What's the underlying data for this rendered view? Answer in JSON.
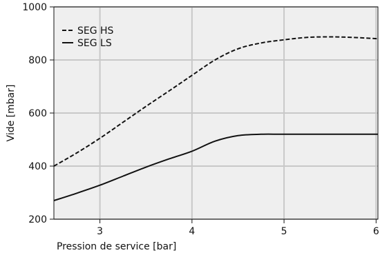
{
  "chart_data": {
    "type": "line",
    "xlabel": "Pression de service [bar]",
    "ylabel": "Vide [mbar]",
    "xlim": [
      2.5,
      6.02
    ],
    "ylim": [
      200,
      1000
    ],
    "xticks": [
      3,
      4,
      5,
      6
    ],
    "yticks": [
      200,
      400,
      600,
      800,
      1000
    ],
    "grid": true,
    "legend_position": "top-left",
    "background": "#efefef",
    "grid_color": "#c8c8c8",
    "series": [
      {
        "name": "SEG HS",
        "style": "dashed",
        "color": "#111111",
        "x": [
          2.5,
          2.75,
          3.0,
          3.25,
          3.5,
          3.75,
          4.0,
          4.25,
          4.5,
          4.75,
          5.0,
          5.25,
          5.5,
          5.75,
          6.02
        ],
        "values": [
          400,
          450,
          505,
          565,
          625,
          683,
          742,
          800,
          842,
          864,
          876,
          885,
          887,
          885,
          880
        ]
      },
      {
        "name": "SEG LS",
        "style": "solid",
        "color": "#111111",
        "x": [
          2.5,
          2.75,
          3.0,
          3.25,
          3.5,
          3.75,
          4.0,
          4.25,
          4.5,
          4.75,
          5.0,
          5.5,
          6.02
        ],
        "values": [
          270,
          298,
          328,
          362,
          396,
          427,
          456,
          494,
          515,
          520,
          520,
          520,
          520
        ]
      }
    ]
  }
}
